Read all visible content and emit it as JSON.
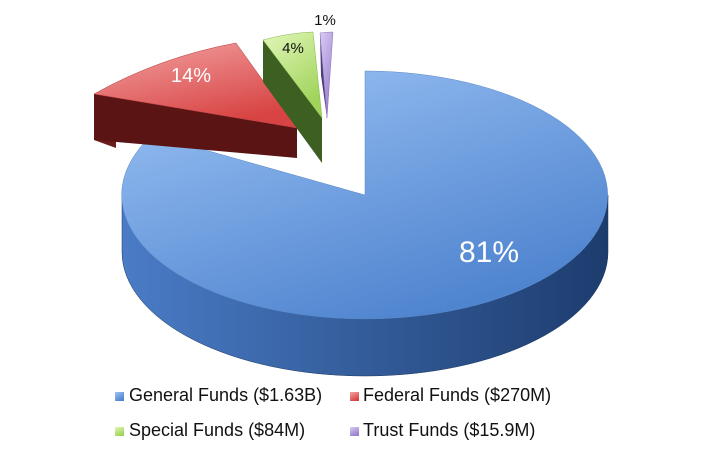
{
  "chart_data": {
    "type": "pie",
    "style": "3d-exploded",
    "title": "",
    "slices": [
      {
        "key": "general",
        "label": "General Funds ($1.63B)",
        "percent_label": "81%",
        "value": 81,
        "color": "#5b8fd8"
      },
      {
        "key": "federal",
        "label": "Federal Funds ($270M)",
        "percent_label": "14%",
        "value": 14,
        "color": "#d84b4b"
      },
      {
        "key": "special",
        "label": "Special Funds ($84M)",
        "percent_label": "4%",
        "value": 4,
        "color": "#9bd25e"
      },
      {
        "key": "trust",
        "label": "Trust Funds ($15.9M)",
        "percent_label": "1%",
        "value": 1,
        "color": "#a98fd6"
      }
    ],
    "legend_position": "bottom"
  }
}
